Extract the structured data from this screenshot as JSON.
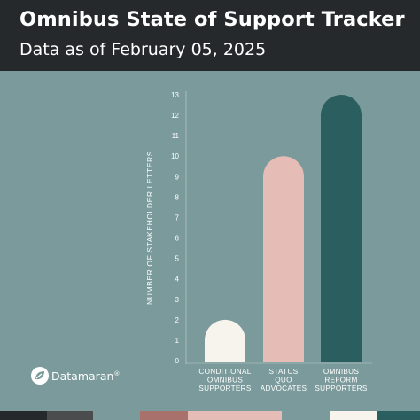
{
  "header": {
    "title": "Omnibus State of Support Tracker",
    "subtitle": "Data as of February 05, 2025"
  },
  "brand": {
    "name": "Datamaran",
    "mark": "®"
  },
  "colors": {
    "background": "#7b9a9b",
    "header": "#26292b",
    "axis_text": "#ffffff"
  },
  "chart_data": {
    "type": "bar",
    "categories": [
      [
        "CONDITIONAL",
        "OMNIBUS",
        "SUPPORTERS"
      ],
      [
        "STATUS",
        "QUO",
        "ADVOCATES"
      ],
      [
        "OMNIBUS",
        "REFORM",
        "SUPPORTERS"
      ]
    ],
    "values": [
      2,
      10,
      13
    ],
    "bar_colors": [
      "#f6f4ec",
      "#e5bcb6",
      "#2b5f5f"
    ],
    "ylabel": "NUMBER OF STAKEHOLDER LETTERS",
    "ylim": [
      0,
      13
    ],
    "yticks": [
      0,
      1,
      2,
      3,
      4,
      5,
      6,
      7,
      8,
      9,
      10,
      11,
      12,
      13
    ],
    "grid": false
  },
  "footer_strip_colors": [
    "#26292b",
    "#4a4c4d",
    "#7b9a9b",
    "#a8716c",
    "#e5bcb6",
    "#7b9a9b",
    "#f6f4ec",
    "#2b5f5f"
  ]
}
